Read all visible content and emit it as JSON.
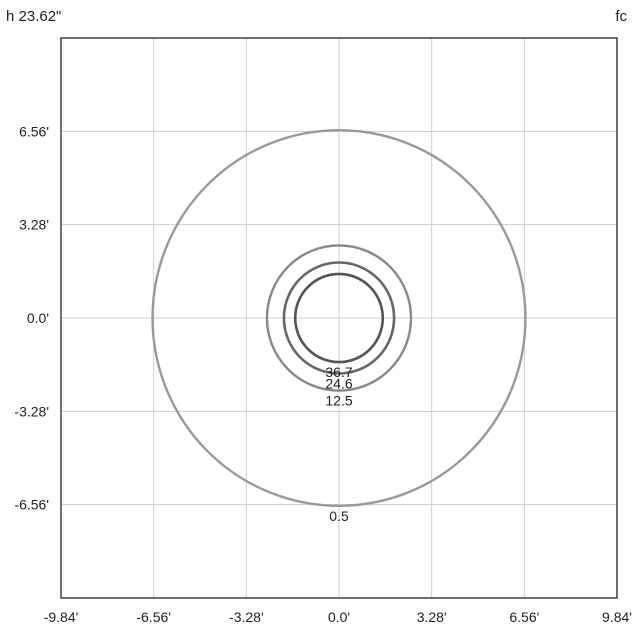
{
  "header": {
    "height_label": "h 23.62\"",
    "unit_label": "fc"
  },
  "chart_data": {
    "type": "contour",
    "title": "",
    "xlabel": "",
    "ylabel": "",
    "xlim": [
      -9.84,
      9.84
    ],
    "ylim": [
      -9.84,
      9.84
    ],
    "grid": true,
    "x_ticks": [
      {
        "value": -9.84,
        "label": "-9.84'"
      },
      {
        "value": -6.56,
        "label": "-6.56'"
      },
      {
        "value": -3.28,
        "label": "-3.28'"
      },
      {
        "value": 0,
        "label": "0.0'"
      },
      {
        "value": 3.28,
        "label": "3.28'"
      },
      {
        "value": 6.56,
        "label": "6.56'"
      },
      {
        "value": 9.84,
        "label": "9.84'"
      }
    ],
    "y_ticks": [
      {
        "value": 6.56,
        "label": "6.56'"
      },
      {
        "value": 3.28,
        "label": "3.28'"
      },
      {
        "value": 0,
        "label": "0.0'"
      },
      {
        "value": -3.28,
        "label": "-3.28'"
      },
      {
        "value": -6.56,
        "label": "-6.56'"
      }
    ],
    "contours": [
      {
        "value": 36.7,
        "label": "36.7",
        "radius": 1.55,
        "color": "#555555",
        "width": 2.6
      },
      {
        "value": 24.6,
        "label": "24.6",
        "radius": 1.95,
        "color": "#666666",
        "width": 2.6
      },
      {
        "value": 12.5,
        "label": "12.5",
        "radius": 2.55,
        "color": "#888888",
        "width": 2.4
      },
      {
        "value": 0.5,
        "label": "0.5",
        "radius": 6.6,
        "color": "#999999",
        "width": 2.4
      }
    ]
  }
}
